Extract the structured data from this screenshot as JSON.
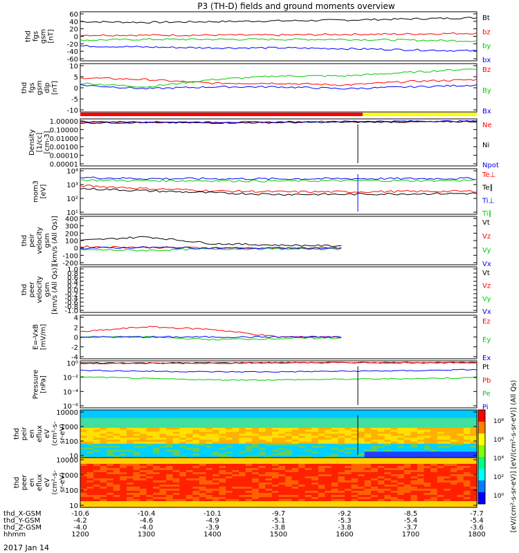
{
  "title": "P3 (TH-D) fields and ground moments overview",
  "date_label": "2017 Jan 14",
  "colors": {
    "black": "#000000",
    "red": "#ff0000",
    "green": "#00cc00",
    "blue": "#0000ff",
    "yellow": "#ffff00"
  },
  "chart_data": {
    "type": "line",
    "x_axis": {
      "rows": [
        {
          "label": "thd_X-GSM",
          "values": [
            "-10.6",
            "-10.4",
            "-10.1",
            "-9.7",
            "-9.2",
            "-8.5",
            "-7.7"
          ]
        },
        {
          "label": "thd_Y-GSM",
          "values": [
            "-4.2",
            "-4.6",
            "-4.9",
            "-5.1",
            "-5.3",
            "-5.4",
            "-5.4"
          ]
        },
        {
          "label": "thd_Z-GSM",
          "values": [
            "-4.0",
            "-4.0",
            "-3.9",
            "-3.8",
            "-3.8",
            "-3.7",
            "-3.6"
          ]
        },
        {
          "label": "hhmm",
          "values": [
            "1200",
            "1300",
            "1400",
            "1500",
            "1600",
            "1700",
            "1800"
          ]
        }
      ]
    },
    "panels": [
      {
        "ylabel": [
          "thd",
          "fgs",
          "gsm",
          "[nT]"
        ],
        "yticks": [
          "60",
          "40",
          "20",
          "0",
          "-20",
          "-40",
          "-60"
        ],
        "legend": [
          {
            "name": "Bt",
            "color": "#000000"
          },
          {
            "name": "bz",
            "color": "#ff0000"
          },
          {
            "name": "by",
            "color": "#00cc00"
          },
          {
            "name": "bx",
            "color": "#0000ff"
          }
        ],
        "ylim": [
          -60,
          60
        ],
        "series": [
          {
            "name": "Bt",
            "values": [
              38,
              36,
              38,
              40,
              42,
              45,
              48
            ]
          },
          {
            "name": "bz",
            "values": [
              3,
              3,
              3,
              3,
              5,
              6,
              8
            ]
          },
          {
            "name": "by",
            "values": [
              -10,
              -8,
              -8,
              -8,
              -8,
              -10,
              -12
            ]
          },
          {
            "name": "bx",
            "values": [
              -25,
              -28,
              -30,
              -30,
              -32,
              -35,
              -38
            ]
          }
        ]
      },
      {
        "ylabel": [
          "thd",
          "fgs",
          "gsm",
          "dlp",
          "[nT]"
        ],
        "yticks": [
          "10",
          "5",
          "0",
          "-5",
          "-10"
        ],
        "legend": [
          {
            "name": "Bz",
            "color": "#ff0000"
          },
          {
            "name": "By",
            "color": "#00cc00"
          },
          {
            "name": "Bx",
            "color": "#0000ff"
          }
        ],
        "ylim": [
          -15,
          10
        ],
        "series": [
          {
            "name": "Bz",
            "values": [
              3,
              2,
              0,
              0,
              -1,
              1,
              2
            ]
          },
          {
            "name": "By",
            "values": [
              0,
              -2,
              2,
              4,
              4,
              6,
              8
            ]
          },
          {
            "name": "Bx",
            "values": [
              -1,
              -3,
              -2,
              -2,
              -3,
              -2,
              -1
            ]
          }
        ]
      },
      {
        "ylabel": [
          "Density",
          "[1/cc]",
          "[cm-3]"
        ],
        "yticks": [
          "1.00000",
          "0.10000",
          "0.01000",
          "0.00100",
          "0.00010",
          "0.00001"
        ],
        "legend": [
          {
            "name": "Ne",
            "color": "#ff0000"
          },
          {
            "name": "Ni",
            "color": "#000000"
          },
          {
            "name": "Npot",
            "color": "#0000ff"
          }
        ],
        "ylim": [
          1e-05,
          1
        ],
        "log": true,
        "series": [
          {
            "name": "Ne",
            "values": [
              0.6,
              0.6,
              0.55,
              0.6,
              0.7,
              0.7,
              0.75
            ]
          },
          {
            "name": "Ni",
            "values": [
              0.5,
              0.55,
              0.5,
              0.55,
              0.6,
              0.65,
              0.7
            ]
          },
          {
            "name": "Npot",
            "values": [
              0.7,
              0.65,
              0.6,
              0.65,
              0.75,
              0.8,
              0.8
            ]
          }
        ]
      },
      {
        "ylabel": [
          "mom3",
          "[eV]"
        ],
        "yticks": [
          "10⁴",
          "10³",
          "10²",
          "10¹"
        ],
        "legend": [
          {
            "name": "Te⊥",
            "color": "#ff0000"
          },
          {
            "name": "Te∥",
            "color": "#000000"
          },
          {
            "name": "Ti⊥",
            "color": "#0000ff"
          },
          {
            "name": "Ti∥",
            "color": "#00cc00"
          }
        ],
        "ylim": [
          10,
          10000
        ],
        "log": true,
        "series": [
          {
            "name": "Ti⊥",
            "values": [
              3000,
              2500,
              2500,
              2400,
              2500,
              2500,
              2600
            ]
          },
          {
            "name": "Ti∥",
            "values": [
              2000,
              1800,
              1800,
              1700,
              1800,
              1800,
              1900
            ]
          },
          {
            "name": "Te⊥",
            "values": [
              800,
              500,
              350,
              300,
              300,
              320,
              330
            ]
          },
          {
            "name": "Te∥",
            "values": [
              500,
              350,
              250,
              200,
              200,
              220,
              230
            ]
          }
        ]
      },
      {
        "ylabel": [
          "thd",
          "peir",
          "velocity",
          "gsm",
          "[km/s (All Qs)]"
        ],
        "yticks": [
          "400",
          "300",
          "200",
          "100",
          "0",
          "-100",
          "-200"
        ],
        "legend": [
          {
            "name": "Vt",
            "color": "#000000"
          },
          {
            "name": "Vz",
            "color": "#ff0000"
          },
          {
            "name": "Vy",
            "color": "#00cc00"
          },
          {
            "name": "Vx",
            "color": "#0000ff"
          }
        ],
        "ylim": [
          -200,
          400
        ],
        "series": [
          {
            "name": "Vt",
            "values": [
              100,
              150,
              60,
              40,
              30,
              null,
              null
            ]
          },
          {
            "name": "Vz",
            "values": [
              20,
              10,
              5,
              0,
              0,
              null,
              null
            ]
          },
          {
            "name": "Vy",
            "values": [
              -20,
              -30,
              -10,
              -10,
              -10,
              null,
              null
            ]
          },
          {
            "name": "Vx",
            "values": [
              0,
              10,
              0,
              0,
              0,
              null,
              null
            ]
          }
        ]
      },
      {
        "ylabel": [
          "thd",
          "peer",
          "velocity",
          "gsm",
          "[km/s (All Qs)]"
        ],
        "yticks": [
          "1.0",
          "0.8",
          "0.6",
          "0.4",
          "0.2",
          "0.0",
          "-0.2",
          "-0.4",
          "-0.6",
          "-0.8",
          "-1.0"
        ],
        "legend": [
          {
            "name": "Vt",
            "color": "#000000"
          },
          {
            "name": "Vz",
            "color": "#ff0000"
          },
          {
            "name": "Vy",
            "color": "#00cc00"
          },
          {
            "name": "Vx",
            "color": "#0000ff"
          }
        ],
        "ylim": [
          -1,
          1
        ],
        "series": []
      },
      {
        "ylabel": [
          "E=-VxB",
          "[mV/m]"
        ],
        "yticks": [
          "4",
          "2",
          "0",
          "-2",
          "-4"
        ],
        "legend": [
          {
            "name": "Ez",
            "color": "#ff0000"
          },
          {
            "name": "Ey",
            "color": "#00cc00"
          },
          {
            "name": "Ex",
            "color": "#0000ff"
          }
        ],
        "ylim": [
          -4,
          4
        ],
        "series": [
          {
            "name": "Ez",
            "values": [
              1,
              2,
              1.5,
              0,
              0,
              null,
              null
            ]
          },
          {
            "name": "Ey",
            "values": [
              0,
              0,
              -0.5,
              -0.3,
              -0.2,
              null,
              null
            ]
          },
          {
            "name": "Ex",
            "values": [
              0,
              0,
              0,
              0,
              0,
              null,
              null
            ]
          }
        ]
      },
      {
        "ylabel": [
          "Pressure",
          "[nPa]"
        ],
        "yticks": [
          "10⁰",
          "10⁻²",
          "10⁻⁴",
          "10⁻⁶"
        ],
        "legend": [
          {
            "name": "Pt",
            "color": "#000000"
          },
          {
            "name": "Pb",
            "color": "#ff0000"
          },
          {
            "name": "Pe",
            "color": "#00cc00"
          },
          {
            "name": "Pi",
            "color": "#0000ff"
          }
        ],
        "ylim": [
          1e-06,
          1
        ],
        "log": true,
        "series": [
          {
            "name": "Pt",
            "values": [
              0.8,
              0.8,
              0.8,
              0.9,
              0.9,
              0.9,
              0.9
            ]
          },
          {
            "name": "Pb",
            "values": [
              0.7,
              0.7,
              0.75,
              0.8,
              0.85,
              0.85,
              0.9
            ]
          },
          {
            "name": "Pi",
            "values": [
              0.08,
              0.06,
              0.05,
              0.05,
              0.06,
              0.07,
              0.1
            ]
          },
          {
            "name": "Pe",
            "values": [
              0.01,
              0.006,
              0.004,
              0.004,
              0.005,
              0.006,
              0.008
            ]
          }
        ]
      },
      {
        "ylabel": [
          "thd",
          "peir",
          "en",
          "eflux",
          "eV",
          "(cm²-s-",
          "sr-eV)"
        ],
        "yticks": [
          "10000",
          "1000",
          "100",
          "10"
        ],
        "type": "spectrogram"
      },
      {
        "ylabel": [
          "thd",
          "peer",
          "en",
          "eflux",
          "eV",
          "(cm²-s-",
          "sr-eV)"
        ],
        "yticks": [
          "10000",
          "1000",
          "100",
          "10"
        ],
        "type": "spectrogram"
      }
    ],
    "colorbar": {
      "label": "[eV/(cm²-s-sr-eV)] [eV/(cm²-s-sr-eV)] (All Qs)",
      "ticks": [
        "10⁸",
        "10⁶",
        "10⁴",
        "10²",
        "10⁰"
      ]
    }
  }
}
